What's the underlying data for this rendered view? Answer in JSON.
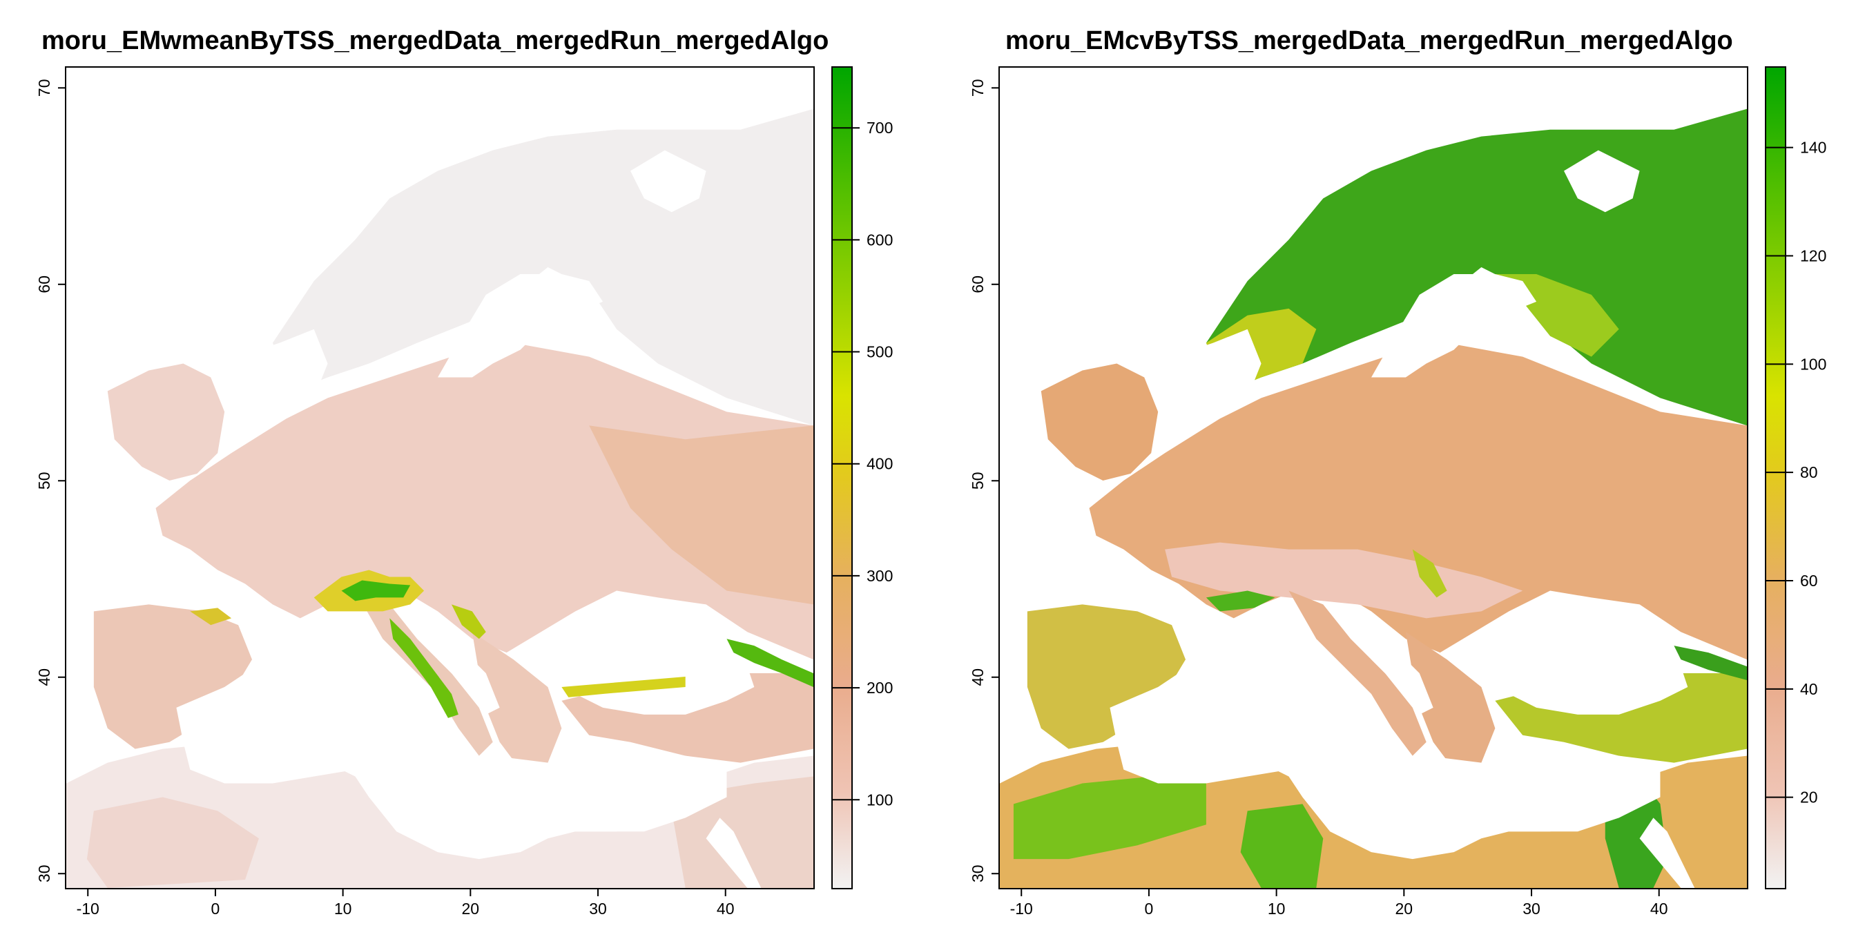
{
  "panels": [
    {
      "title": "moru_EMwmeanByTSS_mergedData_mergedRun_mergedAlgo",
      "legend_ticks": [
        {
          "value": 100,
          "label": "100"
        },
        {
          "value": 200,
          "label": "200"
        },
        {
          "value": 300,
          "label": "300"
        },
        {
          "value": 400,
          "label": "400"
        },
        {
          "value": 500,
          "label": "500"
        },
        {
          "value": 600,
          "label": "600"
        },
        {
          "value": 700,
          "label": "700"
        }
      ],
      "legend_range": [
        20,
        755
      ],
      "colors": {
        "background": "#f2f2f2",
        "land_main": "#efc2b1",
        "land_hot": "#e8ae85",
        "highlight_yellow": "#d9d300",
        "highlight_green": "#3fb80e"
      }
    },
    {
      "title": "moru_EMcvByTSS_mergedData_mergedRun_mergedAlgo",
      "legend_ticks": [
        {
          "value": 20,
          "label": "20"
        },
        {
          "value": 40,
          "label": "40"
        },
        {
          "value": 60,
          "label": "60"
        },
        {
          "value": 80,
          "label": "80"
        },
        {
          "value": 100,
          "label": "100"
        },
        {
          "value": 120,
          "label": "120"
        },
        {
          "value": 140,
          "label": "140"
        }
      ],
      "legend_range": [
        3,
        155
      ],
      "colors": {
        "background": "#e8a972",
        "land_main": "#e7ac7c",
        "land_light": "#efc6b8",
        "highlight_yellow": "#dede00",
        "highlight_green": "#2aa816"
      }
    }
  ],
  "x_axis": {
    "ticks": [
      {
        "value": -10,
        "label": "-10"
      },
      {
        "value": 0,
        "label": "0"
      },
      {
        "value": 10,
        "label": "10"
      },
      {
        "value": 20,
        "label": "20"
      },
      {
        "value": 30,
        "label": "30"
      },
      {
        "value": 40,
        "label": "40"
      }
    ],
    "range": [
      -11.8,
      47
    ]
  },
  "y_axis": {
    "ticks": [
      {
        "value": 30,
        "label": "30"
      },
      {
        "value": 40,
        "label": "40"
      },
      {
        "value": 50,
        "label": "50"
      },
      {
        "value": 60,
        "label": "60"
      },
      {
        "value": 70,
        "label": "70"
      }
    ],
    "range": [
      29.2,
      71.1
    ]
  },
  "colorbar": [
    "#f2f2f2",
    "#efc3b3",
    "#e9ac8c",
    "#e6b05e",
    "#e3c91f",
    "#d9e300",
    "#98d200",
    "#53bf00",
    "#00a600"
  ]
}
